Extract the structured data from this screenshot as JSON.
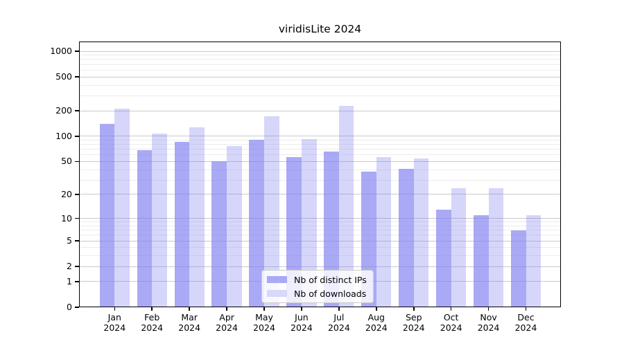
{
  "title": "viridisLite 2024",
  "chart_data": {
    "type": "bar",
    "title": "viridisLite 2024",
    "yscale": "log1p",
    "grid": true,
    "categories": [
      "Jan 2024",
      "Feb 2024",
      "Mar 2024",
      "Apr 2024",
      "May 2024",
      "Jun 2024",
      "Jul 2024",
      "Aug 2024",
      "Sep 2024",
      "Oct 2024",
      "Nov 2024",
      "Dec 2024"
    ],
    "series": [
      {
        "name": "Nb of distinct IPs",
        "color": "#a9a9f4",
        "fill": "rgba(124,124,240,0.66)",
        "values": [
          140,
          68,
          85,
          50,
          90,
          57,
          66,
          38,
          41,
          13,
          11,
          7
        ]
      },
      {
        "name": "Nb of downloads",
        "color": "#d8d8fa",
        "fill": "rgba(124,124,240,0.31)",
        "values": [
          210,
          108,
          128,
          77,
          172,
          93,
          227,
          57,
          54,
          24,
          24,
          11
        ]
      }
    ],
    "yticks": [
      0,
      1,
      2,
      5,
      10,
      20,
      50,
      100,
      200,
      500,
      1000
    ],
    "ylim": [
      0,
      1040
    ],
    "legend_position": "lower center",
    "xlabel": "",
    "ylabel": ""
  },
  "colors": {
    "grid_major": "#c9c9c9",
    "grid_minor": "#ececec",
    "axis": "#000000",
    "background": "#ffffff",
    "legend_border": "#cccccc"
  }
}
